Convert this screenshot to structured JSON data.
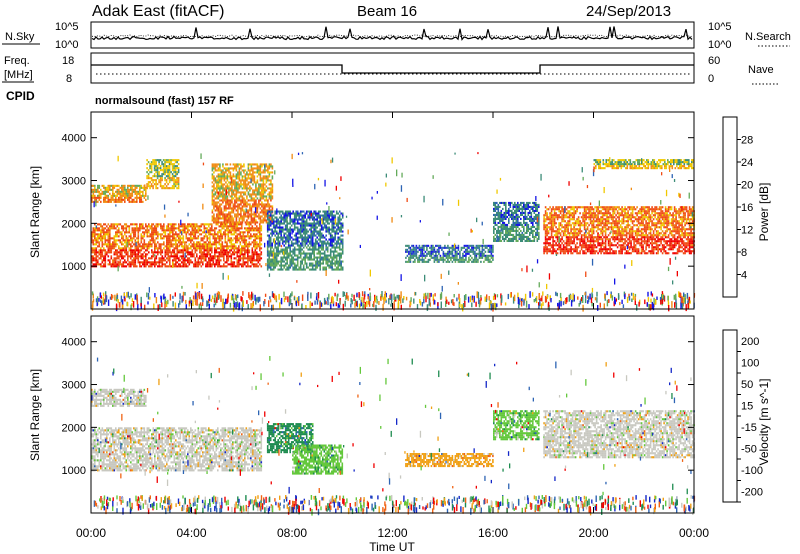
{
  "header": {
    "radar": "Adak East (fitACF)",
    "beam": "Beam 16",
    "date": "24/Sep/2013",
    "program": "normalsound (fast) 157 RF"
  },
  "noise_panel": {
    "left_label": "N.Sky",
    "right_label": "N.Search",
    "left_ticks": [
      "10^5",
      "10^0"
    ],
    "right_ticks": [
      "10^5",
      "10^0"
    ]
  },
  "freq_panel": {
    "left_label_1": "Freq.",
    "left_label_2": "[MHz]",
    "left_ticks": [
      "18",
      "8"
    ],
    "right_label": "Nave",
    "right_ticks": [
      "60",
      "0"
    ],
    "cpid_label": "CPID"
  },
  "chart_data": [
    {
      "type": "heatmap",
      "panel": "power",
      "ylabel": "Slant Range [km]",
      "ylim": [
        0,
        4600
      ],
      "yticks": [
        "1000",
        "2000",
        "3000",
        "4000"
      ],
      "xlim": [
        0,
        24
      ],
      "colorbar": {
        "label": "Power [dB]",
        "ticks": [
          "4",
          "8",
          "12",
          "16",
          "20",
          "24",
          "28"
        ],
        "range": [
          0,
          32
        ],
        "colors": [
          "#1414e6",
          "#2d64b4",
          "#3c8c78",
          "#64aa5a",
          "#f0c800",
          "#f08c14",
          "#f04b14",
          "#f00000"
        ]
      },
      "regions": [
        {
          "t0": 0.0,
          "t1": 6.8,
          "r0": 1000,
          "r1": 2000,
          "level": 26
        },
        {
          "t0": 0.0,
          "t1": 2.2,
          "r0": 2500,
          "r1": 2900,
          "level": 20
        },
        {
          "t0": 2.2,
          "t1": 3.5,
          "r0": 2800,
          "r1": 3500,
          "level": 16
        },
        {
          "t0": 4.8,
          "t1": 7.2,
          "r0": 2000,
          "r1": 3400,
          "level": 22
        },
        {
          "t0": 7.0,
          "t1": 10.0,
          "r0": 900,
          "r1": 2300,
          "level": 9
        },
        {
          "t0": 12.5,
          "t1": 16.0,
          "r0": 1100,
          "r1": 1500,
          "level": 8
        },
        {
          "t0": 16.0,
          "t1": 17.8,
          "r0": 1600,
          "r1": 2500,
          "level": 10
        },
        {
          "t0": 18.0,
          "t1": 24.0,
          "r0": 1300,
          "r1": 2400,
          "level": 24
        },
        {
          "t0": 20.0,
          "t1": 24.0,
          "r0": 3300,
          "r1": 3500,
          "level": 18
        }
      ]
    },
    {
      "type": "heatmap",
      "panel": "velocity",
      "ylabel": "Slant Range [km]",
      "xlabel": "Time UT",
      "ylim": [
        0,
        4600
      ],
      "yticks": [
        "1000",
        "2000",
        "3000",
        "4000"
      ],
      "xticks": [
        "00:00",
        "04:00",
        "08:00",
        "12:00",
        "16:00",
        "20:00",
        "00:00"
      ],
      "xlim": [
        0,
        24
      ],
      "colorbar": {
        "label": "Velocity [m s^-1]",
        "ticks": [
          "200",
          "100",
          "50",
          "15",
          "-15",
          "-50",
          "-100",
          "-200"
        ],
        "colors": [
          "#1428c8",
          "#2d64b4",
          "#1e8c50",
          "#64c83c",
          "#c8c8c0",
          "#f0a014",
          "#f06414",
          "#f00000"
        ]
      },
      "regions": [
        {
          "t0": 0.0,
          "t1": 6.8,
          "r0": 1000,
          "r1": 2000,
          "level": "-15..15"
        },
        {
          "t0": 0.0,
          "t1": 2.2,
          "r0": 2500,
          "r1": 2900,
          "level": "-15..15"
        },
        {
          "t0": 7.0,
          "t1": 8.8,
          "r0": 1400,
          "r1": 2100,
          "level": "50..100"
        },
        {
          "t0": 8.0,
          "t1": 10.0,
          "r0": 900,
          "r1": 1600,
          "level": "15..50"
        },
        {
          "t0": 12.5,
          "t1": 16.0,
          "r0": 1100,
          "r1": 1400,
          "level": "-50..-15"
        },
        {
          "t0": 16.0,
          "t1": 17.8,
          "r0": 1700,
          "r1": 2400,
          "level": "15..50"
        },
        {
          "t0": 18.0,
          "t1": 24.0,
          "r0": 1300,
          "r1": 2400,
          "level": "-15..15"
        }
      ]
    }
  ]
}
